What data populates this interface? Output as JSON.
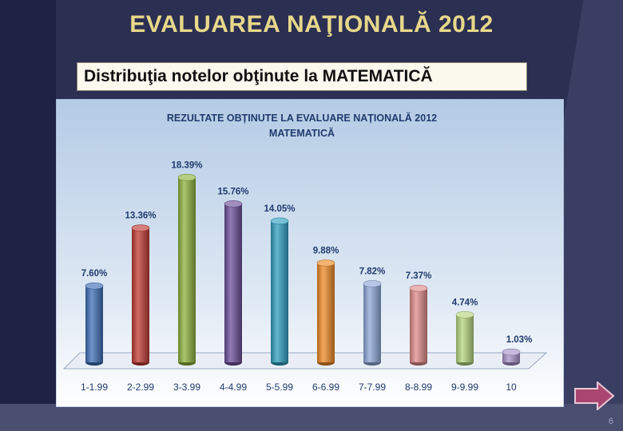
{
  "slide": {
    "title": "EVALUAREA NAŢIONALĂ 2012",
    "subtitle": "Distribuţia notelor obţinute la MATEMATICĂ",
    "page_number": "6",
    "nav_icon": "right-arrow-icon"
  },
  "colors": {
    "title": "#e8d88a",
    "chart_bg_top": "#b9cfe6",
    "chart_bg_bottom": "#ffffff",
    "label_text": "#1f3a6e"
  },
  "chart_data": {
    "type": "bar",
    "title_line1": "REZULTATE OBȚINUTE LA EVALUARE NAȚIONALĂ 2012",
    "title_line2": "MATEMATICĂ",
    "categories": [
      "1-1.99",
      "2-2.99",
      "3-3.99",
      "4-4.99",
      "5-5.99",
      "6-6.99",
      "7-7.99",
      "8-8.99",
      "9-9.99",
      "10"
    ],
    "values": [
      7.6,
      13.36,
      18.39,
      15.76,
      14.05,
      9.88,
      7.82,
      7.37,
      4.74,
      1.03
    ],
    "value_labels": [
      "7.60%",
      "13.36%",
      "18.39%",
      "15.76%",
      "14.05%",
      "9.88%",
      "7.82%",
      "7.37%",
      "4.74%",
      "1.03%"
    ],
    "bar_colors": [
      "#3d6fb5",
      "#c03a33",
      "#8fb33e",
      "#6c4f9a",
      "#2fa0c0",
      "#ee8a26",
      "#8ea8d8",
      "#df8a8a",
      "#b6d67e",
      "#a995c9"
    ],
    "ylim": [
      0,
      20
    ],
    "grid": false,
    "legend": "none"
  }
}
